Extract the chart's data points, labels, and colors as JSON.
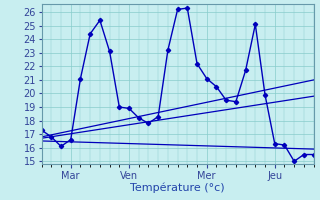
{
  "xlabel": "Température (°c)",
  "background_color": "#c8eef0",
  "grid_color": "#88cccc",
  "line_color": "#0000bb",
  "xlim": [
    0,
    28
  ],
  "ylim": [
    14.8,
    26.6
  ],
  "yticks": [
    15,
    16,
    17,
    18,
    19,
    20,
    21,
    22,
    23,
    24,
    25,
    26
  ],
  "xtick_positions": [
    3,
    9,
    17,
    24
  ],
  "xtick_labels": [
    "Mar",
    "Ven",
    "Mer",
    "Jeu"
  ],
  "line_main": {
    "x": [
      0,
      1,
      2,
      3,
      4,
      5,
      6,
      7,
      8,
      9,
      10,
      11,
      12,
      13,
      14,
      15,
      16,
      17,
      18,
      19,
      20,
      21,
      22,
      23,
      24,
      25,
      26,
      27,
      28
    ],
    "y": [
      17.3,
      16.8,
      16.1,
      16.6,
      21.1,
      24.4,
      25.4,
      23.1,
      19.0,
      18.9,
      18.2,
      17.8,
      18.3,
      23.2,
      26.2,
      26.3,
      22.2,
      21.1,
      20.5,
      19.5,
      19.4,
      21.7,
      25.1,
      19.9,
      16.3,
      16.2,
      15.0,
      15.5,
      15.5
    ]
  },
  "line_flat": {
    "x": [
      0,
      28
    ],
    "y": [
      16.5,
      15.9
    ]
  },
  "line_trend_high": {
    "x": [
      0,
      28
    ],
    "y": [
      16.8,
      21.0
    ]
  },
  "line_trend_mid": {
    "x": [
      0,
      28
    ],
    "y": [
      16.7,
      19.8
    ]
  }
}
